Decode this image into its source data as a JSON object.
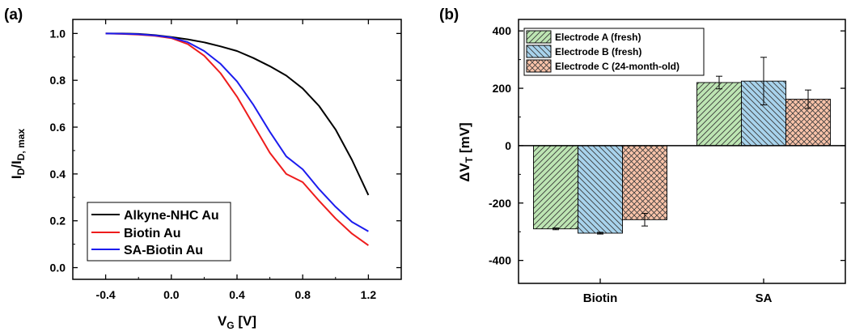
{
  "chart_data": [
    {
      "type": "line",
      "panel_label": "(a)",
      "xlabel": "V",
      "xlabel_sub": "G",
      "xlabel_unit": " [V]",
      "ylabel": "I",
      "ylabel_sub1": "D",
      "ylabel_mid": "/I",
      "ylabel_sub2": "D, max",
      "xlim": [
        -0.6,
        1.4
      ],
      "ylim": [
        -0.05,
        1.06
      ],
      "x_ticks": [
        -0.4,
        0.0,
        0.4,
        0.8,
        1.2
      ],
      "x_tick_labels": [
        "-0.4",
        "0.0",
        "0.4",
        "0.8",
        "1.2"
      ],
      "y_ticks": [
        0.0,
        0.2,
        0.4,
        0.6,
        0.8,
        1.0
      ],
      "y_tick_labels": [
        "0.0",
        "0.2",
        "0.4",
        "0.6",
        "0.8",
        "1.0"
      ],
      "legend_position": "bottom-left",
      "series": [
        {
          "name": "Alkyne-NHC Au",
          "color": "#000000",
          "x": [
            -0.4,
            -0.3,
            -0.2,
            -0.1,
            0.0,
            0.1,
            0.2,
            0.3,
            0.4,
            0.5,
            0.6,
            0.7,
            0.8,
            0.9,
            1.0,
            1.1,
            1.2
          ],
          "y": [
            1.0,
            1.0,
            0.998,
            0.993,
            0.985,
            0.975,
            0.962,
            0.945,
            0.925,
            0.895,
            0.86,
            0.82,
            0.765,
            0.69,
            0.59,
            0.46,
            0.31
          ]
        },
        {
          "name": "Biotin Au",
          "color": "#ee1c1c",
          "x": [
            -0.4,
            -0.3,
            -0.2,
            -0.1,
            0.0,
            0.1,
            0.2,
            0.3,
            0.4,
            0.5,
            0.6,
            0.7,
            0.8,
            0.9,
            1.0,
            1.1,
            1.2
          ],
          "y": [
            1.0,
            0.998,
            0.995,
            0.99,
            0.98,
            0.955,
            0.905,
            0.83,
            0.73,
            0.61,
            0.49,
            0.4,
            0.365,
            0.285,
            0.21,
            0.145,
            0.095
          ]
        },
        {
          "name": "SA-Biotin Au",
          "color": "#1c1cee",
          "x": [
            -0.4,
            -0.3,
            -0.2,
            -0.1,
            0.0,
            0.1,
            0.2,
            0.3,
            0.4,
            0.5,
            0.6,
            0.7,
            0.8,
            0.9,
            1.0,
            1.1,
            1.2
          ],
          "y": [
            1.0,
            0.999,
            0.997,
            0.992,
            0.983,
            0.963,
            0.925,
            0.87,
            0.795,
            0.695,
            0.58,
            0.475,
            0.42,
            0.335,
            0.26,
            0.195,
            0.155
          ]
        }
      ]
    },
    {
      "type": "bar",
      "panel_label": "(b)",
      "xlabel": "",
      "ylabel": "ΔV",
      "ylabel_sub": "T",
      "ylabel_unit": " [mV]",
      "ylim": [
        -480,
        440
      ],
      "y_ticks": [
        -400,
        -200,
        0,
        200,
        400
      ],
      "y_tick_labels": [
        "-400",
        "-200",
        "0",
        "200",
        "400"
      ],
      "categories": [
        "Biotin",
        "SA"
      ],
      "legend_position": "top-left",
      "series": [
        {
          "name": "Electrode A (fresh)",
          "color": "#bde5b3",
          "hatch": "forward",
          "values": [
            -290,
            220
          ],
          "errors": [
            3,
            22
          ]
        },
        {
          "name": "Electrode B (fresh)",
          "color": "#a8d3ec",
          "hatch": "back",
          "values": [
            -305,
            225
          ],
          "errors": [
            3,
            83
          ]
        },
        {
          "name": "Electrode C (24-month-old)",
          "color": "#f9c3a9",
          "hatch": "cross",
          "values": [
            -258,
            162
          ],
          "errors": [
            22,
            32
          ]
        }
      ]
    }
  ]
}
